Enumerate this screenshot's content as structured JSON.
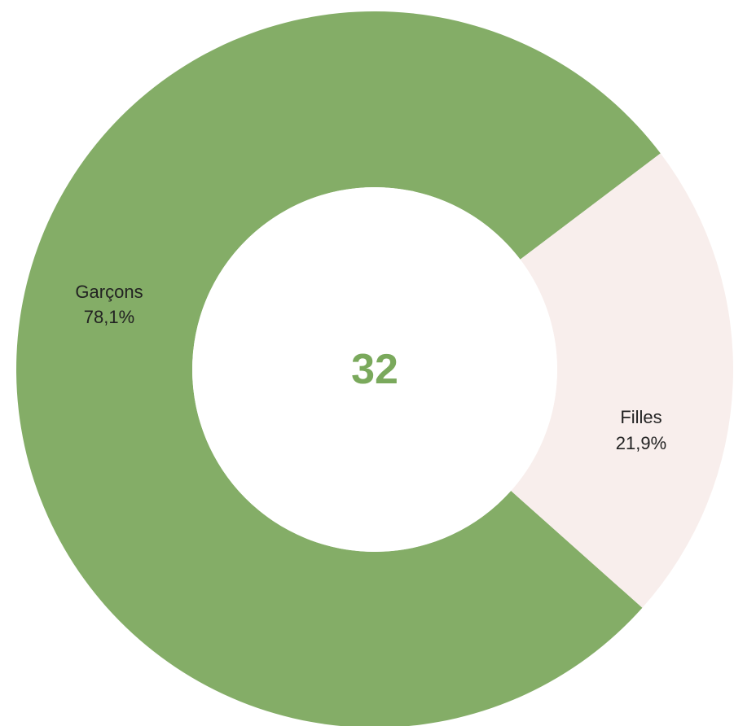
{
  "chart_data": {
    "type": "pie",
    "variant": "donut",
    "center_label": "32",
    "slices": [
      {
        "name": "Garçons",
        "value": 78.1,
        "value_label": "78,1%",
        "color": "#84ad67"
      },
      {
        "name": "Filles",
        "value": 21.9,
        "value_label": "21,9%",
        "color": "#f8eeec"
      }
    ],
    "colors": {
      "center_text": "#7aa95c"
    }
  }
}
